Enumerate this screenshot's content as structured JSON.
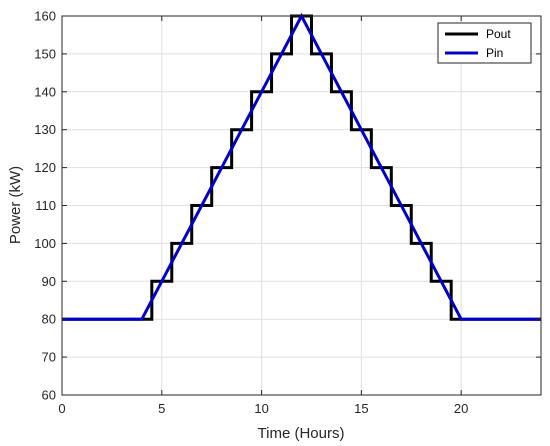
{
  "chart_data": {
    "type": "line",
    "title": "",
    "xlabel": "Time (Hours)",
    "ylabel": "Power (kW)",
    "xlim": [
      0,
      24
    ],
    "ylim": [
      60,
      160
    ],
    "xticks": [
      0,
      5,
      10,
      15,
      20
    ],
    "yticks": [
      60,
      70,
      80,
      90,
      100,
      110,
      120,
      130,
      140,
      150,
      160
    ],
    "grid": true,
    "legend_position": "top-right",
    "series": [
      {
        "name": "Pout",
        "color": "#000000",
        "step": true,
        "x": [
          0,
          4.5,
          4.5,
          5.5,
          5.5,
          6.5,
          6.5,
          7.5,
          7.5,
          8.5,
          8.5,
          9.5,
          9.5,
          10.5,
          10.5,
          11.5,
          11.5,
          12.5,
          12.5,
          13.5,
          13.5,
          14.5,
          14.5,
          15.5,
          15.5,
          16.5,
          16.5,
          17.5,
          17.5,
          18.5,
          18.5,
          19.5,
          19.5,
          24
        ],
        "y": [
          80,
          80,
          90,
          90,
          100,
          100,
          110,
          110,
          120,
          120,
          130,
          130,
          140,
          140,
          150,
          150,
          160,
          160,
          150,
          150,
          140,
          140,
          130,
          130,
          120,
          120,
          110,
          110,
          100,
          100,
          90,
          90,
          80,
          80
        ]
      },
      {
        "name": "Pin",
        "color": "#0000cc",
        "step": false,
        "x": [
          0,
          4,
          12,
          20,
          24
        ],
        "y": [
          80,
          80,
          160,
          80,
          80
        ]
      }
    ]
  }
}
